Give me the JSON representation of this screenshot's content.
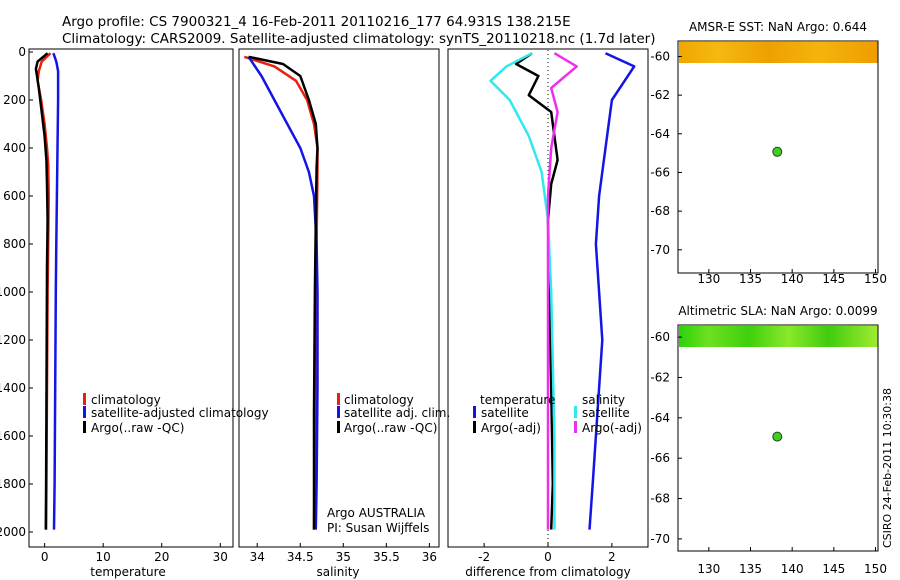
{
  "header": {
    "title_line1": "Argo profile: CS 7900321_4 16-Feb-2011 20110216_177 64.931S 138.215E",
    "title_line2": "Climatology: CARS2009. Satellite-adjusted climatology: synTS_20110218.nc (1.7d later)"
  },
  "colors": {
    "climatology": "#e82010",
    "satellite": "#1414e6",
    "argo": "#000000",
    "salinity_satellite": "#30e8f0",
    "salinity_argo": "#ee30ee",
    "argo_marker": "#44cc22"
  },
  "chart_data": [
    {
      "type": "line",
      "name": "temperature",
      "xlabel": "temperature",
      "ylabel": "",
      "xlim": [
        -2.5,
        32
      ],
      "ylim": [
        2050,
        0
      ],
      "xticks": [
        "0",
        "10",
        "20",
        "30"
      ],
      "xtick_values": [
        0,
        10,
        20,
        30
      ],
      "yticks": [
        "0",
        "200",
        "400",
        "600",
        "800",
        "1000",
        "1200",
        "1400",
        "1600",
        "1800",
        "2000"
      ],
      "ytick_values": [
        0,
        200,
        400,
        600,
        800,
        1000,
        1200,
        1400,
        1600,
        1800,
        2000
      ],
      "legend": [
        "climatology",
        "satellite-adjusted climatology",
        "Argo(..raw -QC)"
      ],
      "series": [
        {
          "name": "climatology",
          "color_key": "climatology",
          "x": [
            1.0,
            -0.5,
            -1.0,
            -1.2,
            -0.6,
            0.0,
            0.4,
            0.6,
            0.7,
            0.6,
            0.5,
            0.4,
            0.35,
            0.3,
            0.25
          ],
          "y": [
            5,
            40,
            80,
            120,
            200,
            300,
            400,
            470,
            600,
            800,
            1000,
            1400,
            1600,
            1800,
            1990
          ]
        },
        {
          "name": "satellite-adjusted climatology",
          "color_key": "satellite",
          "x": [
            1.5,
            2.0,
            2.3,
            2.3,
            2.2,
            2.1,
            2.0,
            1.9,
            1.8,
            1.7,
            1.6
          ],
          "y": [
            5,
            40,
            80,
            200,
            400,
            600,
            800,
            1000,
            1400,
            1800,
            1990
          ]
        },
        {
          "name": "Argo(..raw -QC)",
          "color_key": "argo",
          "x": [
            0.5,
            -1.2,
            -1.5,
            -1.0,
            -0.5,
            0.0,
            0.3,
            0.4,
            0.5,
            0.4,
            0.35,
            0.3,
            0.25,
            0.2
          ],
          "y": [
            5,
            40,
            70,
            150,
            250,
            350,
            450,
            550,
            700,
            900,
            1200,
            1500,
            1800,
            1990
          ]
        }
      ]
    },
    {
      "type": "line",
      "name": "salinity",
      "xlabel": "salinity",
      "xlim": [
        33.8,
        36.1
      ],
      "ylim": [
        2050,
        0
      ],
      "xticks": [
        "34",
        "34.5",
        "35",
        "35.5",
        "36"
      ],
      "xtick_values": [
        34,
        34.5,
        35,
        35.5,
        36
      ],
      "legend": [
        "climatology",
        "satellite adj. clim.",
        "Argo(..raw -QC)"
      ],
      "annotation_line1": "Argo AUSTRALIA",
      "annotation_line2": "PI: Susan Wijffels",
      "series": [
        {
          "name": "climatology",
          "color_key": "climatology",
          "x": [
            33.85,
            34.2,
            34.45,
            34.58,
            34.66,
            34.7,
            34.7,
            34.69,
            34.68,
            34.67,
            34.66
          ],
          "y": [
            20,
            60,
            120,
            200,
            300,
            400,
            480,
            800,
            1200,
            1600,
            1990
          ]
        },
        {
          "name": "satellite adj. clim.",
          "color_key": "satellite",
          "x": [
            33.9,
            34.05,
            34.2,
            34.35,
            34.5,
            34.6,
            34.66,
            34.69,
            34.7,
            34.7,
            34.69,
            34.68
          ],
          "y": [
            20,
            100,
            200,
            300,
            400,
            500,
            600,
            800,
            1000,
            1400,
            1800,
            1990
          ]
        },
        {
          "name": "Argo(..raw -QC)",
          "color_key": "argo",
          "x": [
            33.9,
            34.3,
            34.5,
            34.6,
            34.68,
            34.7,
            34.69,
            34.68,
            34.67,
            34.66,
            34.66
          ],
          "y": [
            20,
            50,
            100,
            200,
            300,
            400,
            480,
            700,
            1000,
            1500,
            1990
          ]
        }
      ]
    },
    {
      "type": "line",
      "name": "difference",
      "xlabel": "difference from climatology",
      "xlim": [
        -3.1,
        3.1
      ],
      "ylim": [
        2050,
        0
      ],
      "xticks": [
        "-2",
        "0",
        "2"
      ],
      "xtick_values": [
        -2,
        0,
        2
      ],
      "legend_left_title": "temperature",
      "legend_right_title": "salinity",
      "legend": [
        "satellite",
        "Argo(-adj)",
        "satellite",
        "Argo(-adj)"
      ],
      "series": [
        {
          "name": "temperature satellite",
          "color_key": "satellite",
          "x": [
            1.8,
            2.7,
            2.0,
            1.8,
            1.6,
            1.5,
            1.6,
            1.7,
            1.6,
            1.5,
            1.4,
            1.3
          ],
          "y": [
            5,
            60,
            200,
            400,
            600,
            800,
            1000,
            1200,
            1400,
            1600,
            1800,
            1990
          ]
        },
        {
          "name": "temperature Argo(-adj)",
          "color_key": "argo",
          "x": [
            -0.5,
            -1.0,
            -0.3,
            -0.6,
            0.1,
            0.2,
            0.3,
            0.1,
            0.0,
            0.05,
            0.1,
            0.15,
            0.1
          ],
          "y": [
            5,
            50,
            100,
            180,
            250,
            350,
            450,
            550,
            700,
            1000,
            1400,
            1800,
            1990
          ]
        },
        {
          "name": "salinity satellite",
          "color_key": "salinity_satellite",
          "x": [
            -0.5,
            -1.3,
            -1.8,
            -1.2,
            -0.6,
            -0.2,
            0.0,
            0.1,
            0.15,
            0.2,
            0.2,
            0.2
          ],
          "y": [
            5,
            60,
            120,
            200,
            350,
            500,
            700,
            1000,
            1300,
            1600,
            1800,
            1990
          ]
        },
        {
          "name": "salinity Argo(-adj)",
          "color_key": "salinity_argo",
          "x": [
            0.2,
            0.9,
            0.1,
            0.3,
            0.1,
            0.0,
            0.0,
            0.0,
            0.0,
            0.0
          ],
          "y": [
            5,
            60,
            150,
            250,
            400,
            600,
            900,
            1300,
            1700,
            1990
          ]
        }
      ]
    },
    {
      "type": "heatmap",
      "name": "amsr-sst",
      "title": "AMSR-E SST: NaN Argo: 0.644",
      "xlim": [
        126.3,
        150.3
      ],
      "ylim": [
        -71.2,
        -59.2
      ],
      "xticks": [
        "130",
        "135",
        "140",
        "145",
        "150"
      ],
      "xtick_values": [
        130,
        135,
        140,
        145,
        150
      ],
      "yticks": [
        "-60",
        "-62",
        "-64",
        "-66",
        "-68",
        "-70"
      ],
      "ytick_values": [
        -60,
        -62,
        -64,
        -66,
        -68,
        -70
      ],
      "field_lat_range": [
        -60.2,
        -59.2
      ],
      "argo_position": {
        "lon": 138.215,
        "lat": -64.931
      }
    },
    {
      "type": "heatmap",
      "name": "altimetric-sla",
      "title": "Altimetric SLA: NaN Argo: 0.0099",
      "xlim": [
        126.3,
        150.3
      ],
      "ylim": [
        -70.6,
        -59.4
      ],
      "xticks": [
        "130",
        "135",
        "140",
        "145",
        "150"
      ],
      "xtick_values": [
        130,
        135,
        140,
        145,
        150
      ],
      "yticks": [
        "-60",
        "-62",
        "-64",
        "-66",
        "-68",
        "-70"
      ],
      "ytick_values": [
        -60,
        -62,
        -64,
        -66,
        -68,
        -70
      ],
      "field_lat_range": [
        -60.3,
        -59.4
      ],
      "argo_position": {
        "lon": 138.215,
        "lat": -64.931
      }
    }
  ],
  "footer": {
    "stamp": "CSIRO 24-Feb-2011 10:30:38"
  }
}
